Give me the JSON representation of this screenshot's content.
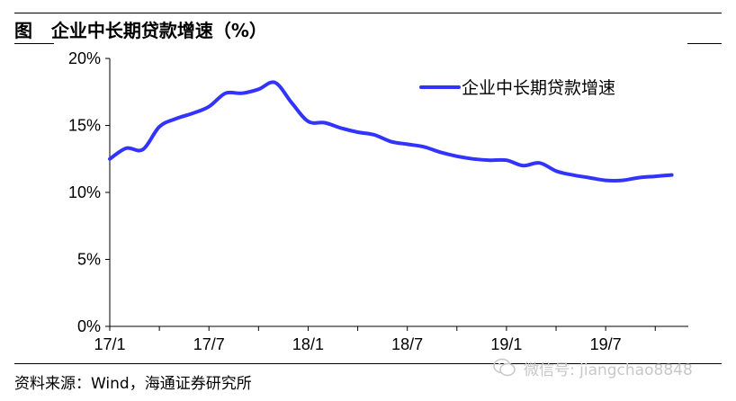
{
  "figure": {
    "title": "图   企业中长期贷款增速（%）",
    "source": "资料来源：Wind，海通证券研究所",
    "watermark": "微信号: jiangchao8848"
  },
  "chart_data": {
    "type": "line",
    "title": "",
    "xlabel": "",
    "ylabel": "",
    "y_tick_labels": [
      "0%",
      "5%",
      "10%",
      "15%",
      "20%"
    ],
    "y_ticks": [
      0,
      5,
      10,
      15,
      20
    ],
    "ylim": [
      0,
      20
    ],
    "x_tick_labels": [
      "17/1",
      "17/7",
      "18/1",
      "18/7",
      "19/1",
      "19/7"
    ],
    "x_ticks": [
      "2017-01",
      "2017-07",
      "2018-01",
      "2018-07",
      "2019-01",
      "2019-07"
    ],
    "grid": false,
    "legend_position": "top-right",
    "color": "#3333ff",
    "series": [
      {
        "name": "企业中长期贷款增速",
        "x": [
          "2017-01",
          "2017-02",
          "2017-03",
          "2017-04",
          "2017-05",
          "2017-06",
          "2017-07",
          "2017-08",
          "2017-09",
          "2017-10",
          "2017-11",
          "2017-12",
          "2018-01",
          "2018-02",
          "2018-03",
          "2018-04",
          "2018-05",
          "2018-06",
          "2018-07",
          "2018-08",
          "2018-09",
          "2018-10",
          "2018-11",
          "2018-12",
          "2019-01",
          "2019-02",
          "2019-03",
          "2019-04",
          "2019-05",
          "2019-06",
          "2019-07",
          "2019-08",
          "2019-09",
          "2019-10",
          "2019-11"
        ],
        "values": [
          12.5,
          13.3,
          13.2,
          14.9,
          15.5,
          15.9,
          16.4,
          17.4,
          17.4,
          17.7,
          18.2,
          16.7,
          15.3,
          15.2,
          14.8,
          14.5,
          14.3,
          13.8,
          13.6,
          13.4,
          13.0,
          12.7,
          12.5,
          12.4,
          12.4,
          12.0,
          12.2,
          11.6,
          11.3,
          11.1,
          10.9,
          10.9,
          11.1,
          11.2,
          11.3
        ]
      }
    ]
  }
}
